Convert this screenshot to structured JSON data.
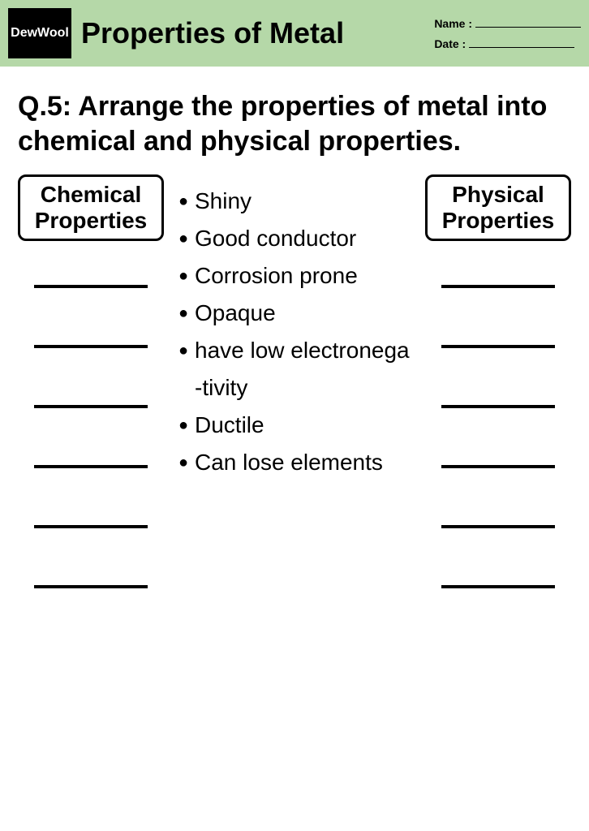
{
  "header": {
    "logo_text": "DewWool",
    "title": "Properties of Metal",
    "name_label": "Name  :",
    "date_label": "Date  :",
    "bg_color": "#b5d8a8",
    "logo_bg": "#000000",
    "logo_fg": "#ffffff"
  },
  "question": "Q.5: Arrange the properties of metal into chemical and physical properties.",
  "left_box": "Chemical Properties",
  "right_box": "Physical Properties",
  "properties": [
    "Shiny",
    "Good conductor",
    "Corrosion prone",
    "Opaque",
    "have low electronega",
    "-tivity",
    "Ductile",
    "Can lose elements"
  ],
  "blank_count": 6,
  "fonts": {
    "title_size": 36,
    "question_size": 34,
    "box_size": 28,
    "list_size": 28
  },
  "colors": {
    "page_bg": "#ffffff",
    "text": "#000000",
    "border": "#000000"
  }
}
